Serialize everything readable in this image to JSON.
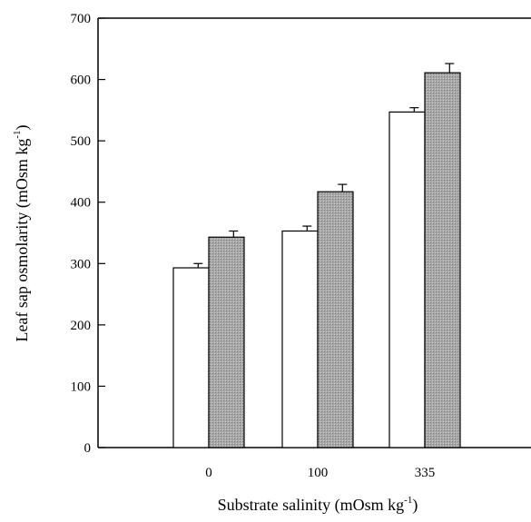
{
  "chart_data": {
    "type": "bar",
    "title": "",
    "xlabel": {
      "text": "Substrate salinity (mOsm kg",
      "superscript": "-1",
      "suffix": ")"
    },
    "ylabel": {
      "text": "Leaf sap osmolarity (mOsm kg",
      "superscript": "-1",
      "suffix": ")"
    },
    "categories": [
      "0",
      "100",
      "335"
    ],
    "ylim": [
      0,
      700
    ],
    "yticks": [
      "0",
      "100",
      "200",
      "300",
      "400",
      "500",
      "600",
      "700"
    ],
    "grid": false,
    "legend": "none",
    "series": [
      {
        "fill": "#ffffff",
        "values": [
          293,
          353,
          547
        ],
        "errors": [
          7,
          8,
          7
        ]
      },
      {
        "fill": "#a8a8a8",
        "values": [
          343,
          417,
          611
        ],
        "errors": [
          10,
          12,
          15
        ]
      }
    ]
  }
}
